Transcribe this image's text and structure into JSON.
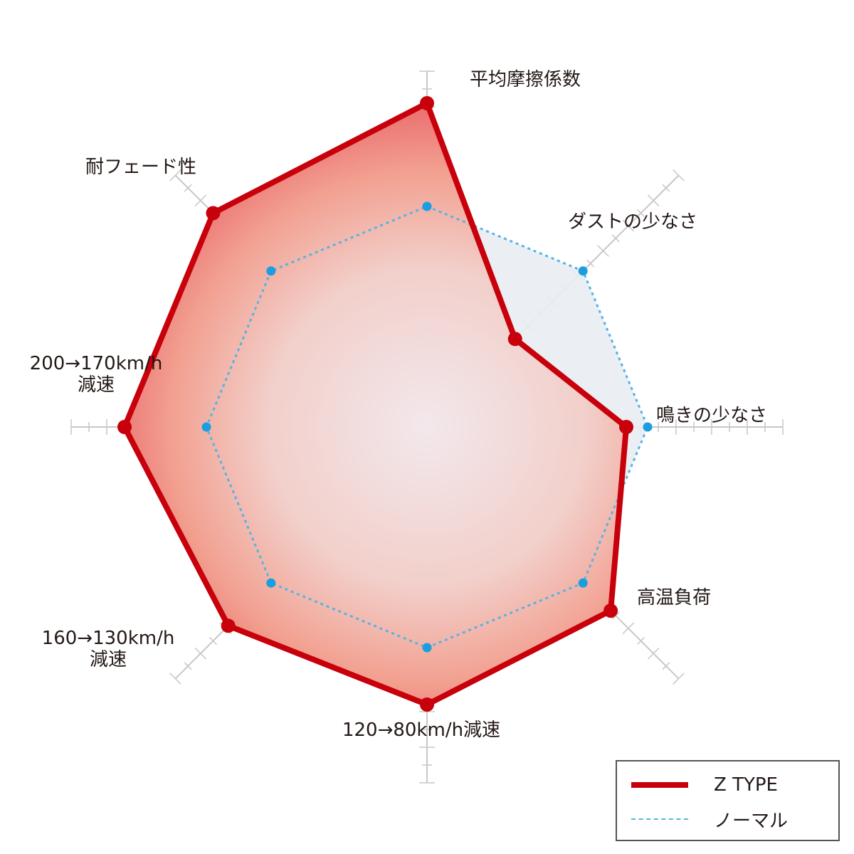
{
  "chart_data": {
    "type": "radar",
    "axes": [
      "平均摩擦係数",
      "ダストの少なさ",
      "鳴きの少なさ",
      "高温負荷",
      "120→80km/h減速",
      "160→130km/h\n減速",
      "200→170km/h\n減速",
      "耐フェード性"
    ],
    "scale": [
      0,
      10
    ],
    "grid": true,
    "legend_position": "bottom-right",
    "series": [
      {
        "name": "Z TYPE",
        "values": [
          9.1,
          3.5,
          5.6,
          7.3,
          7.8,
          7.9,
          8.5,
          8.5
        ],
        "color": "#c8000b",
        "style": "solid"
      },
      {
        "name": "ノーマル",
        "values": [
          6.2,
          6.2,
          6.2,
          6.2,
          6.2,
          6.2,
          6.2,
          6.2
        ],
        "color": "#55b3e6",
        "style": "dashed"
      }
    ]
  },
  "legend": {
    "ztype_label": "Z TYPE",
    "normal_label": "ノーマル"
  }
}
